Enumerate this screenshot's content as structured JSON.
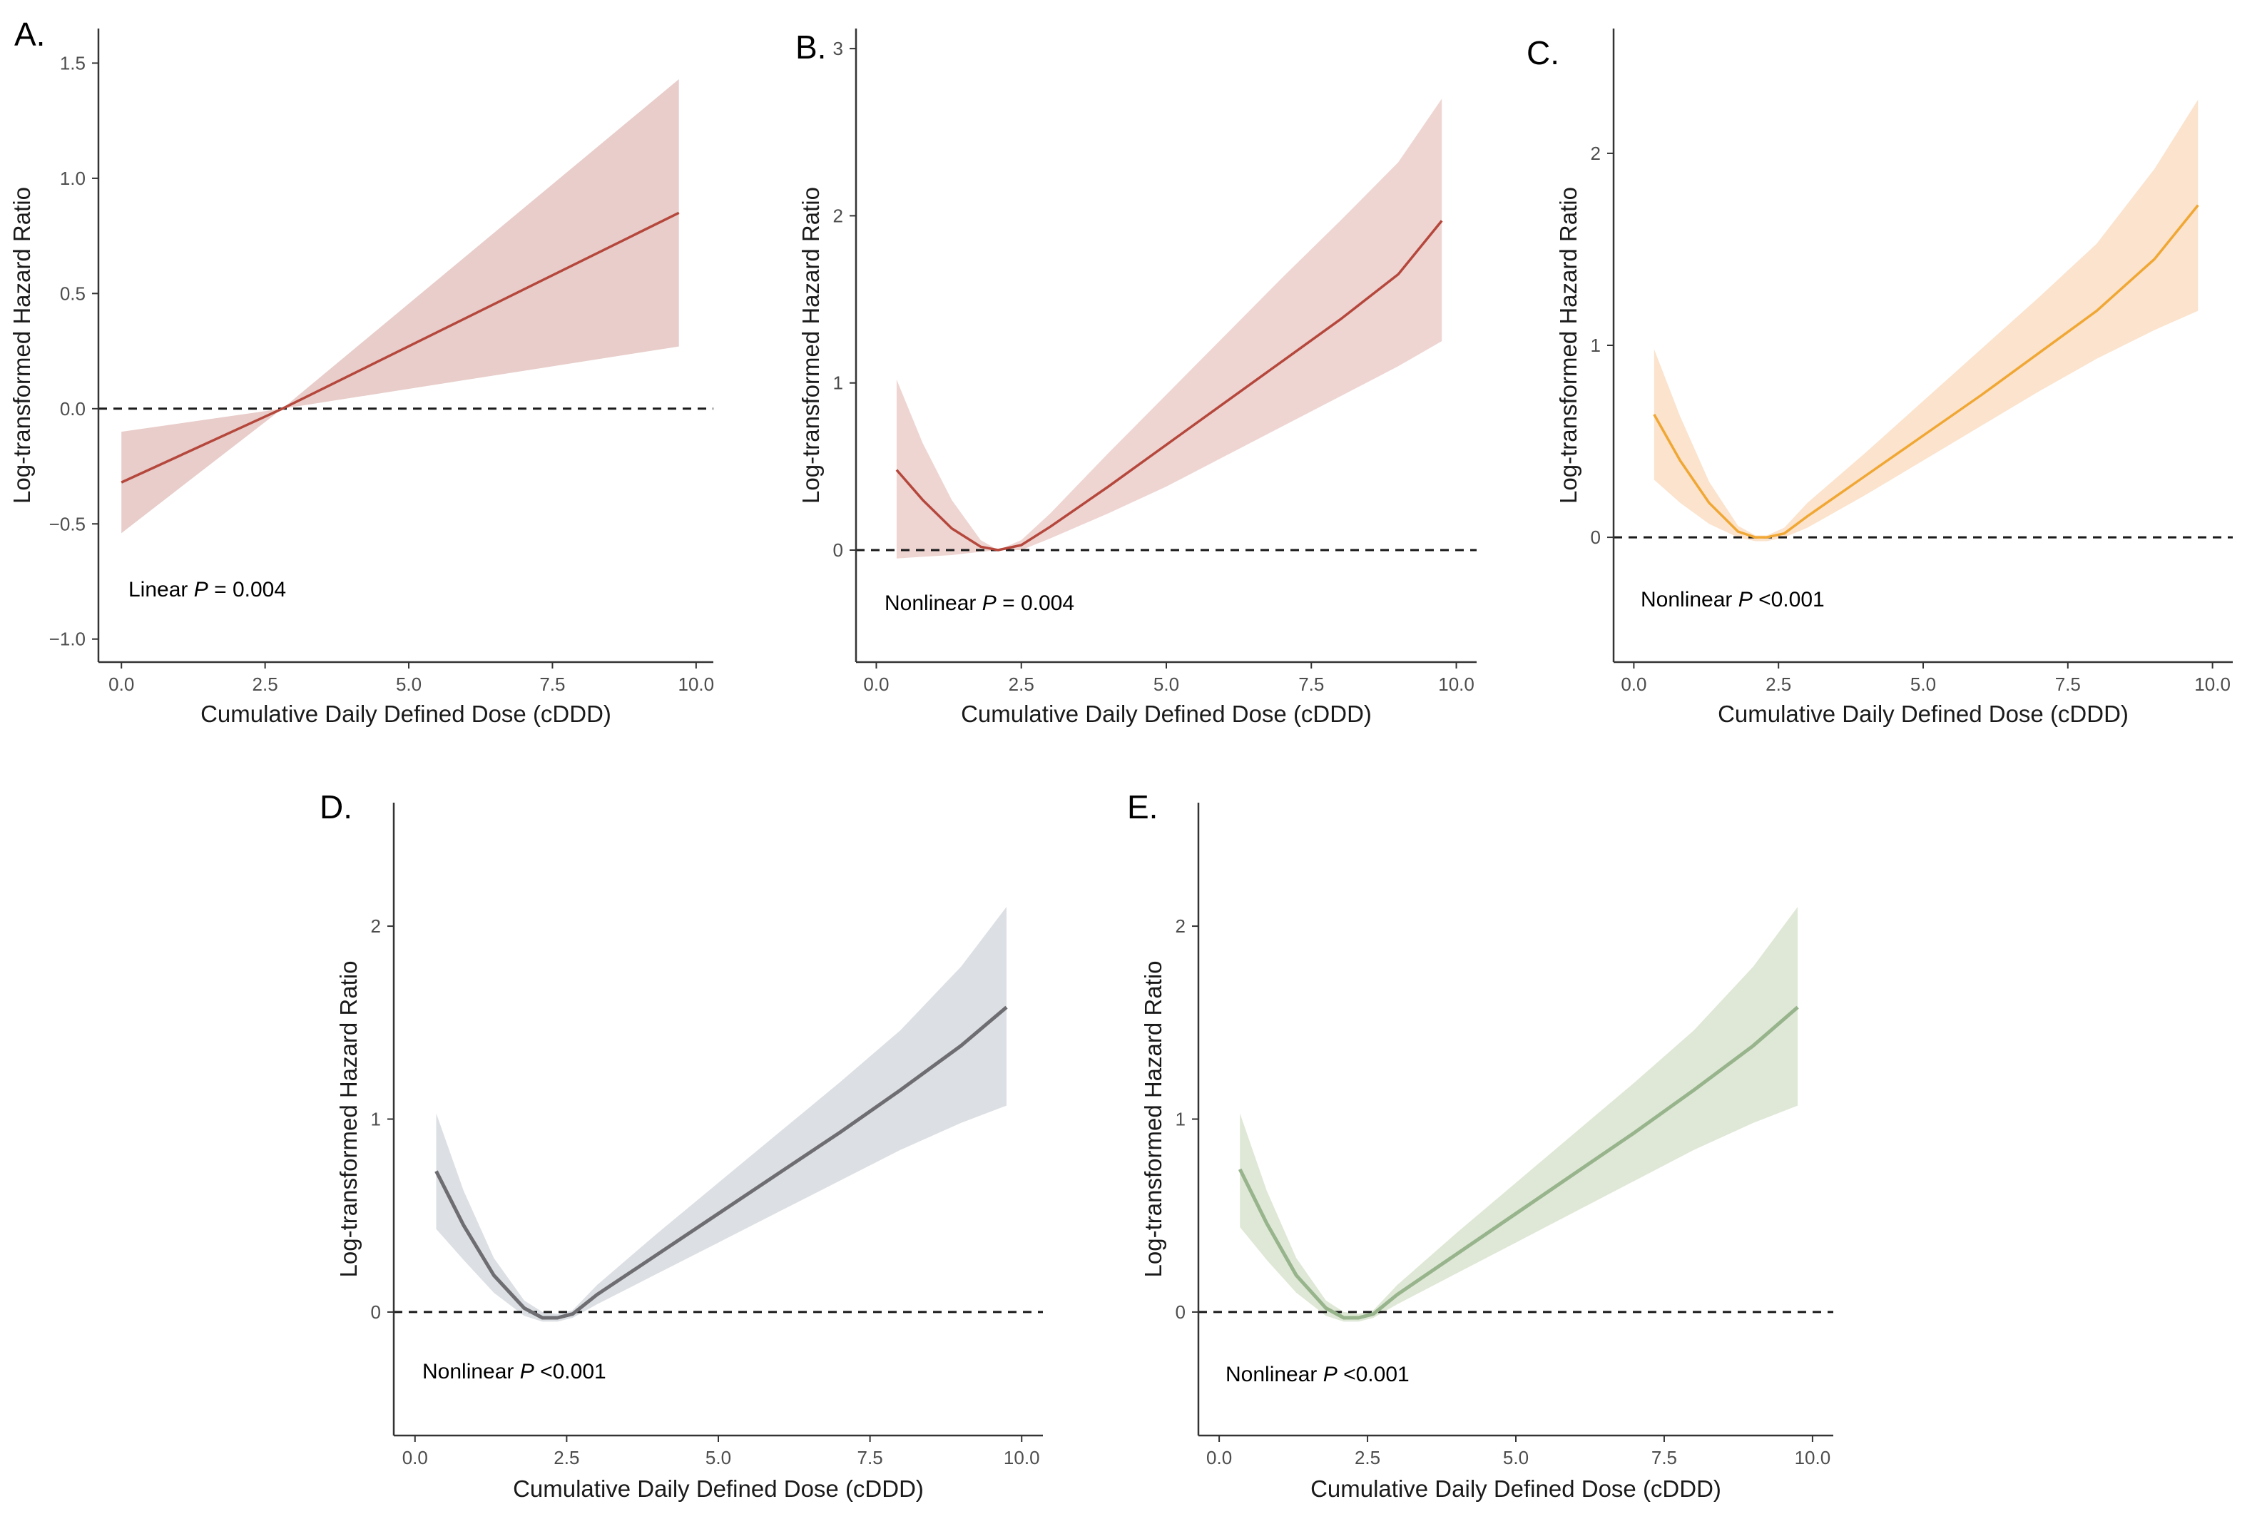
{
  "chart_data": [
    {
      "type": "line",
      "panel_label": "A.",
      "xlabel": "Cumulative Daily Defined Dose (cDDD)",
      "ylabel": "Log-transformed Hazard Ratio",
      "xlim": [
        -0.4,
        10.3
      ],
      "ylim": [
        -1.1,
        1.65
      ],
      "x_ticks": [
        0,
        2.5,
        5,
        7.5,
        10
      ],
      "x_tick_labels": [
        "0.0",
        "2.5",
        "5.0",
        "7.5",
        "10.0"
      ],
      "y_ticks": [
        -1,
        -0.5,
        0,
        0.5,
        1,
        1.5
      ],
      "y_tick_labels": [
        "−1.0",
        "−0.5",
        "0.0",
        "0.5",
        "1.0",
        "1.5"
      ],
      "reference_y": 0,
      "color": "#b5473c",
      "band_color": "#e8cdca",
      "annotation": {
        "prefix": "Linear ",
        "p": "P",
        "suffix": " = 0.004"
      },
      "series": [
        {
          "name": "estimate",
          "x": [
            0,
            2.8,
            9.7
          ],
          "y": [
            -0.32,
            0,
            0.85
          ]
        },
        {
          "name": "lower",
          "x": [
            0,
            2.8,
            9.7
          ],
          "y": [
            -0.54,
            0,
            0.27
          ]
        },
        {
          "name": "upper",
          "x": [
            0,
            2.8,
            9.7
          ],
          "y": [
            -0.1,
            0,
            1.43
          ]
        }
      ]
    },
    {
      "type": "line",
      "panel_label": "B.",
      "xlabel": "Cumulative Daily Defined Dose (cDDD)",
      "ylabel": "Log-transformed Hazard Ratio",
      "xlim": [
        -0.35,
        10.35
      ],
      "ylim": [
        -0.67,
        3.12
      ],
      "x_ticks": [
        0,
        2.5,
        5,
        7.5,
        10
      ],
      "x_tick_labels": [
        "0.0",
        "2.5",
        "5.0",
        "7.5",
        "10.0"
      ],
      "y_ticks": [
        0,
        1,
        2,
        3
      ],
      "y_tick_labels": [
        "0",
        "1",
        "2",
        "3"
      ],
      "reference_y": 0,
      "color": "#b5473c",
      "band_color": "#eed5d2",
      "annotation": {
        "prefix": "Nonlinear ",
        "p": "P",
        "suffix": " = 0.004"
      },
      "series": [
        {
          "name": "estimate",
          "x": [
            0.35,
            0.8,
            1.3,
            1.8,
            2.1,
            2.5,
            3.0,
            4.0,
            5.0,
            6.0,
            7.0,
            8.0,
            9.0,
            9.75
          ],
          "y": [
            0.48,
            0.3,
            0.13,
            0.02,
            0.0,
            0.03,
            0.14,
            0.38,
            0.63,
            0.88,
            1.13,
            1.38,
            1.65,
            1.97
          ]
        },
        {
          "name": "lower",
          "x": [
            0.35,
            0.8,
            1.3,
            1.8,
            2.1,
            2.5,
            3.0,
            4.0,
            5.0,
            6.0,
            7.0,
            8.0,
            9.0,
            9.75
          ],
          "y": [
            -0.05,
            -0.04,
            -0.03,
            -0.01,
            0.0,
            0.0,
            0.07,
            0.22,
            0.38,
            0.56,
            0.74,
            0.92,
            1.1,
            1.25
          ]
        },
        {
          "name": "upper",
          "x": [
            0.35,
            0.8,
            1.3,
            1.8,
            2.1,
            2.5,
            3.0,
            4.0,
            5.0,
            6.0,
            7.0,
            8.0,
            9.0,
            9.75
          ],
          "y": [
            1.02,
            0.64,
            0.3,
            0.06,
            0.0,
            0.06,
            0.22,
            0.58,
            0.93,
            1.28,
            1.63,
            1.97,
            2.32,
            2.7
          ]
        }
      ]
    },
    {
      "type": "line",
      "panel_label": "C.",
      "xlabel": "Cumulative Daily Defined Dose (cDDD)",
      "ylabel": "Log-transformed Hazard Ratio",
      "xlim": [
        -0.35,
        10.35
      ],
      "ylim": [
        -0.65,
        2.65
      ],
      "x_ticks": [
        0,
        2.5,
        5,
        7.5,
        10
      ],
      "x_tick_labels": [
        "0.0",
        "2.5",
        "5.0",
        "7.5",
        "10.0"
      ],
      "y_ticks": [
        0,
        1,
        2
      ],
      "y_tick_labels": [
        "0",
        "1",
        "2"
      ],
      "reference_y": 0,
      "color": "#f0a734",
      "band_color": "#fbe3cd",
      "annotation": {
        "prefix": "Nonlinear ",
        "p": "P",
        "suffix": " <0.001"
      },
      "series": [
        {
          "name": "estimate",
          "x": [
            0.35,
            0.8,
            1.3,
            1.8,
            2.1,
            2.3,
            2.6,
            3.0,
            4.0,
            5.0,
            6.0,
            7.0,
            8.0,
            9.0,
            9.75
          ],
          "y": [
            0.64,
            0.4,
            0.18,
            0.03,
            0.0,
            0.0,
            0.02,
            0.11,
            0.32,
            0.53,
            0.74,
            0.96,
            1.18,
            1.45,
            1.73
          ]
        },
        {
          "name": "lower",
          "x": [
            0.35,
            0.8,
            1.3,
            1.8,
            2.1,
            2.3,
            2.6,
            3.0,
            4.0,
            5.0,
            6.0,
            7.0,
            8.0,
            9.0,
            9.75
          ],
          "y": [
            0.3,
            0.18,
            0.07,
            0.0,
            -0.02,
            -0.02,
            0.0,
            0.05,
            0.22,
            0.4,
            0.58,
            0.76,
            0.93,
            1.08,
            1.18
          ]
        },
        {
          "name": "upper",
          "x": [
            0.35,
            0.8,
            1.3,
            1.8,
            2.1,
            2.3,
            2.6,
            3.0,
            4.0,
            5.0,
            6.0,
            7.0,
            8.0,
            9.0,
            9.75
          ],
          "y": [
            0.98,
            0.63,
            0.29,
            0.06,
            0.01,
            0.01,
            0.05,
            0.18,
            0.44,
            0.71,
            0.98,
            1.25,
            1.53,
            1.92,
            2.28
          ]
        }
      ]
    },
    {
      "type": "line",
      "panel_label": "D.",
      "xlabel": "Cumulative Daily Defined Dose (cDDD)",
      "ylabel": "Log-transformed Hazard Ratio",
      "xlim": [
        -0.35,
        10.35
      ],
      "ylim": [
        -0.64,
        2.64
      ],
      "x_ticks": [
        0,
        2.5,
        5,
        7.5,
        10
      ],
      "x_tick_labels": [
        "0.0",
        "2.5",
        "5.0",
        "7.5",
        "10.0"
      ],
      "y_ticks": [
        0,
        1,
        2
      ],
      "y_tick_labels": [
        "0",
        "1",
        "2"
      ],
      "reference_y": 0,
      "color": "#6e6e72",
      "band_color": "#dcdfe3",
      "annotation": {
        "prefix": "Nonlinear ",
        "p": "P",
        "suffix": " <0.001"
      },
      "series": [
        {
          "name": "estimate",
          "x": [
            0.35,
            0.8,
            1.3,
            1.8,
            2.1,
            2.35,
            2.6,
            3.0,
            4.0,
            5.0,
            6.0,
            7.0,
            8.0,
            9.0,
            9.75
          ],
          "y": [
            0.73,
            0.45,
            0.19,
            0.02,
            -0.03,
            -0.03,
            -0.01,
            0.09,
            0.3,
            0.51,
            0.72,
            0.93,
            1.15,
            1.38,
            1.58
          ]
        },
        {
          "name": "lower",
          "x": [
            0.35,
            0.8,
            1.3,
            1.8,
            2.1,
            2.35,
            2.6,
            3.0,
            4.0,
            5.0,
            6.0,
            7.0,
            8.0,
            9.0,
            9.75
          ],
          "y": [
            0.43,
            0.27,
            0.1,
            -0.02,
            -0.05,
            -0.05,
            -0.03,
            0.04,
            0.2,
            0.36,
            0.52,
            0.68,
            0.84,
            0.98,
            1.07
          ]
        },
        {
          "name": "upper",
          "x": [
            0.35,
            0.8,
            1.3,
            1.8,
            2.1,
            2.35,
            2.6,
            3.0,
            4.0,
            5.0,
            6.0,
            7.0,
            8.0,
            9.0,
            9.75
          ],
          "y": [
            1.03,
            0.63,
            0.28,
            0.06,
            0.0,
            -0.01,
            0.01,
            0.14,
            0.41,
            0.67,
            0.93,
            1.19,
            1.46,
            1.79,
            2.1
          ]
        }
      ]
    },
    {
      "type": "line",
      "panel_label": "E.",
      "xlabel": "Cumulative Daily Defined Dose (cDDD)",
      "ylabel": "Log-transformed Hazard Ratio",
      "xlim": [
        -0.35,
        10.35
      ],
      "ylim": [
        -0.64,
        2.64
      ],
      "x_ticks": [
        0,
        2.5,
        5,
        7.5,
        10
      ],
      "x_tick_labels": [
        "0.0",
        "2.5",
        "5.0",
        "7.5",
        "10.0"
      ],
      "y_ticks": [
        0,
        1,
        2
      ],
      "y_tick_labels": [
        "0",
        "1",
        "2"
      ],
      "reference_y": 0,
      "color": "#97b48c",
      "band_color": "#dfe8d6",
      "annotation": {
        "prefix": "Nonlinear ",
        "p": "P",
        "suffix": " <0.001"
      },
      "series": [
        {
          "name": "estimate",
          "x": [
            0.35,
            0.8,
            1.3,
            1.8,
            2.1,
            2.35,
            2.6,
            3.0,
            4.0,
            5.0,
            6.0,
            7.0,
            8.0,
            9.0,
            9.75
          ],
          "y": [
            0.74,
            0.46,
            0.19,
            0.02,
            -0.03,
            -0.03,
            -0.01,
            0.09,
            0.3,
            0.51,
            0.72,
            0.93,
            1.15,
            1.38,
            1.58
          ]
        },
        {
          "name": "lower",
          "x": [
            0.35,
            0.8,
            1.3,
            1.8,
            2.1,
            2.35,
            2.6,
            3.0,
            4.0,
            5.0,
            6.0,
            7.0,
            8.0,
            9.0,
            9.75
          ],
          "y": [
            0.44,
            0.27,
            0.1,
            -0.02,
            -0.05,
            -0.05,
            -0.03,
            0.04,
            0.2,
            0.36,
            0.52,
            0.68,
            0.84,
            0.98,
            1.07
          ]
        },
        {
          "name": "upper",
          "x": [
            0.35,
            0.8,
            1.3,
            1.8,
            2.1,
            2.35,
            2.6,
            3.0,
            4.0,
            5.0,
            6.0,
            7.0,
            8.0,
            9.0,
            9.75
          ],
          "y": [
            1.03,
            0.63,
            0.28,
            0.06,
            0.0,
            -0.01,
            0.01,
            0.14,
            0.41,
            0.67,
            0.93,
            1.19,
            1.46,
            1.79,
            2.1
          ]
        }
      ]
    }
  ]
}
